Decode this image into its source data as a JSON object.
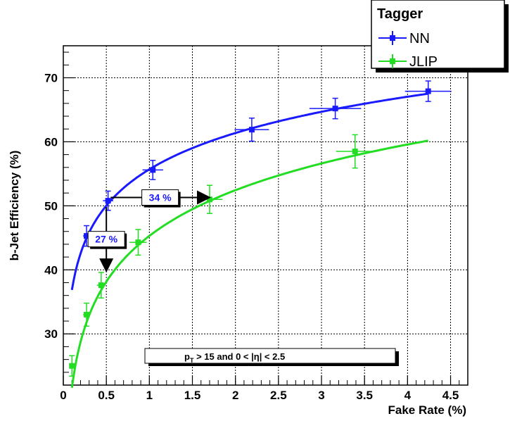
{
  "chart_data": {
    "type": "scatter",
    "xlabel": "Fake Rate (%)",
    "ylabel": "b-Jet Efficiency (%)",
    "xlim": [
      0,
      4.7
    ],
    "ylim": [
      22,
      75
    ],
    "xticks": [
      "0",
      "0.5",
      "1",
      "1.5",
      "2",
      "2.5",
      "3",
      "3.5",
      "4",
      "4.5"
    ],
    "yticks": [
      "30",
      "40",
      "50",
      "60",
      "70"
    ],
    "grid": true,
    "legend": {
      "title": "Tagger",
      "position": "top-right"
    },
    "series": [
      {
        "name": "NN",
        "color": "#1a1aff",
        "points": [
          {
            "x": 0.27,
            "y": 45.3,
            "xerr": 0.04,
            "yerr": 1.6
          },
          {
            "x": 0.52,
            "y": 50.8,
            "xerr": 0.06,
            "yerr": 1.5
          },
          {
            "x": 1.04,
            "y": 55.6,
            "xerr": 0.12,
            "yerr": 1.5
          },
          {
            "x": 2.19,
            "y": 61.9,
            "xerr": 0.2,
            "yerr": 1.8
          },
          {
            "x": 3.16,
            "y": 65.2,
            "xerr": 0.3,
            "yerr": 1.6
          },
          {
            "x": 4.24,
            "y": 67.9,
            "xerr": 0.27,
            "yerr": 1.6
          }
        ],
        "fit": {
          "a": 55.7,
          "b": 8.18,
          "x_range": [
            0.1,
            4.24
          ]
        }
      },
      {
        "name": "JLIP",
        "color": "#22dd22",
        "points": [
          {
            "x": 0.1,
            "y": 25.0,
            "xerr": 0.02,
            "yerr": 1.6
          },
          {
            "x": 0.27,
            "y": 33.0,
            "xerr": 0.04,
            "yerr": 1.8
          },
          {
            "x": 0.44,
            "y": 37.6,
            "xerr": 0.05,
            "yerr": 2.0
          },
          {
            "x": 0.87,
            "y": 44.3,
            "xerr": 0.1,
            "yerr": 2.0
          },
          {
            "x": 1.7,
            "y": 51.0,
            "xerr": 0.15,
            "yerr": 2.2
          },
          {
            "x": 3.39,
            "y": 58.5,
            "xerr": 0.22,
            "yerr": 2.6
          }
        ],
        "fit": {
          "a": 45.3,
          "b": 10.3,
          "x_range": [
            0.1,
            4.24
          ]
        }
      }
    ],
    "annotations": [
      {
        "text": "34 %",
        "color": "#1a1aff",
        "from": [
          0.55,
          51.3
        ],
        "to": [
          1.7,
          51.3
        ]
      },
      {
        "text": "27 %",
        "color": "#1a1aff",
        "from": [
          0.5,
          49.8
        ],
        "to": [
          0.5,
          39.8
        ]
      }
    ],
    "cut_label": {
      "pre": "p",
      "sub": "T",
      "post": " > 15 and  0 < |η| < 2.5"
    }
  }
}
